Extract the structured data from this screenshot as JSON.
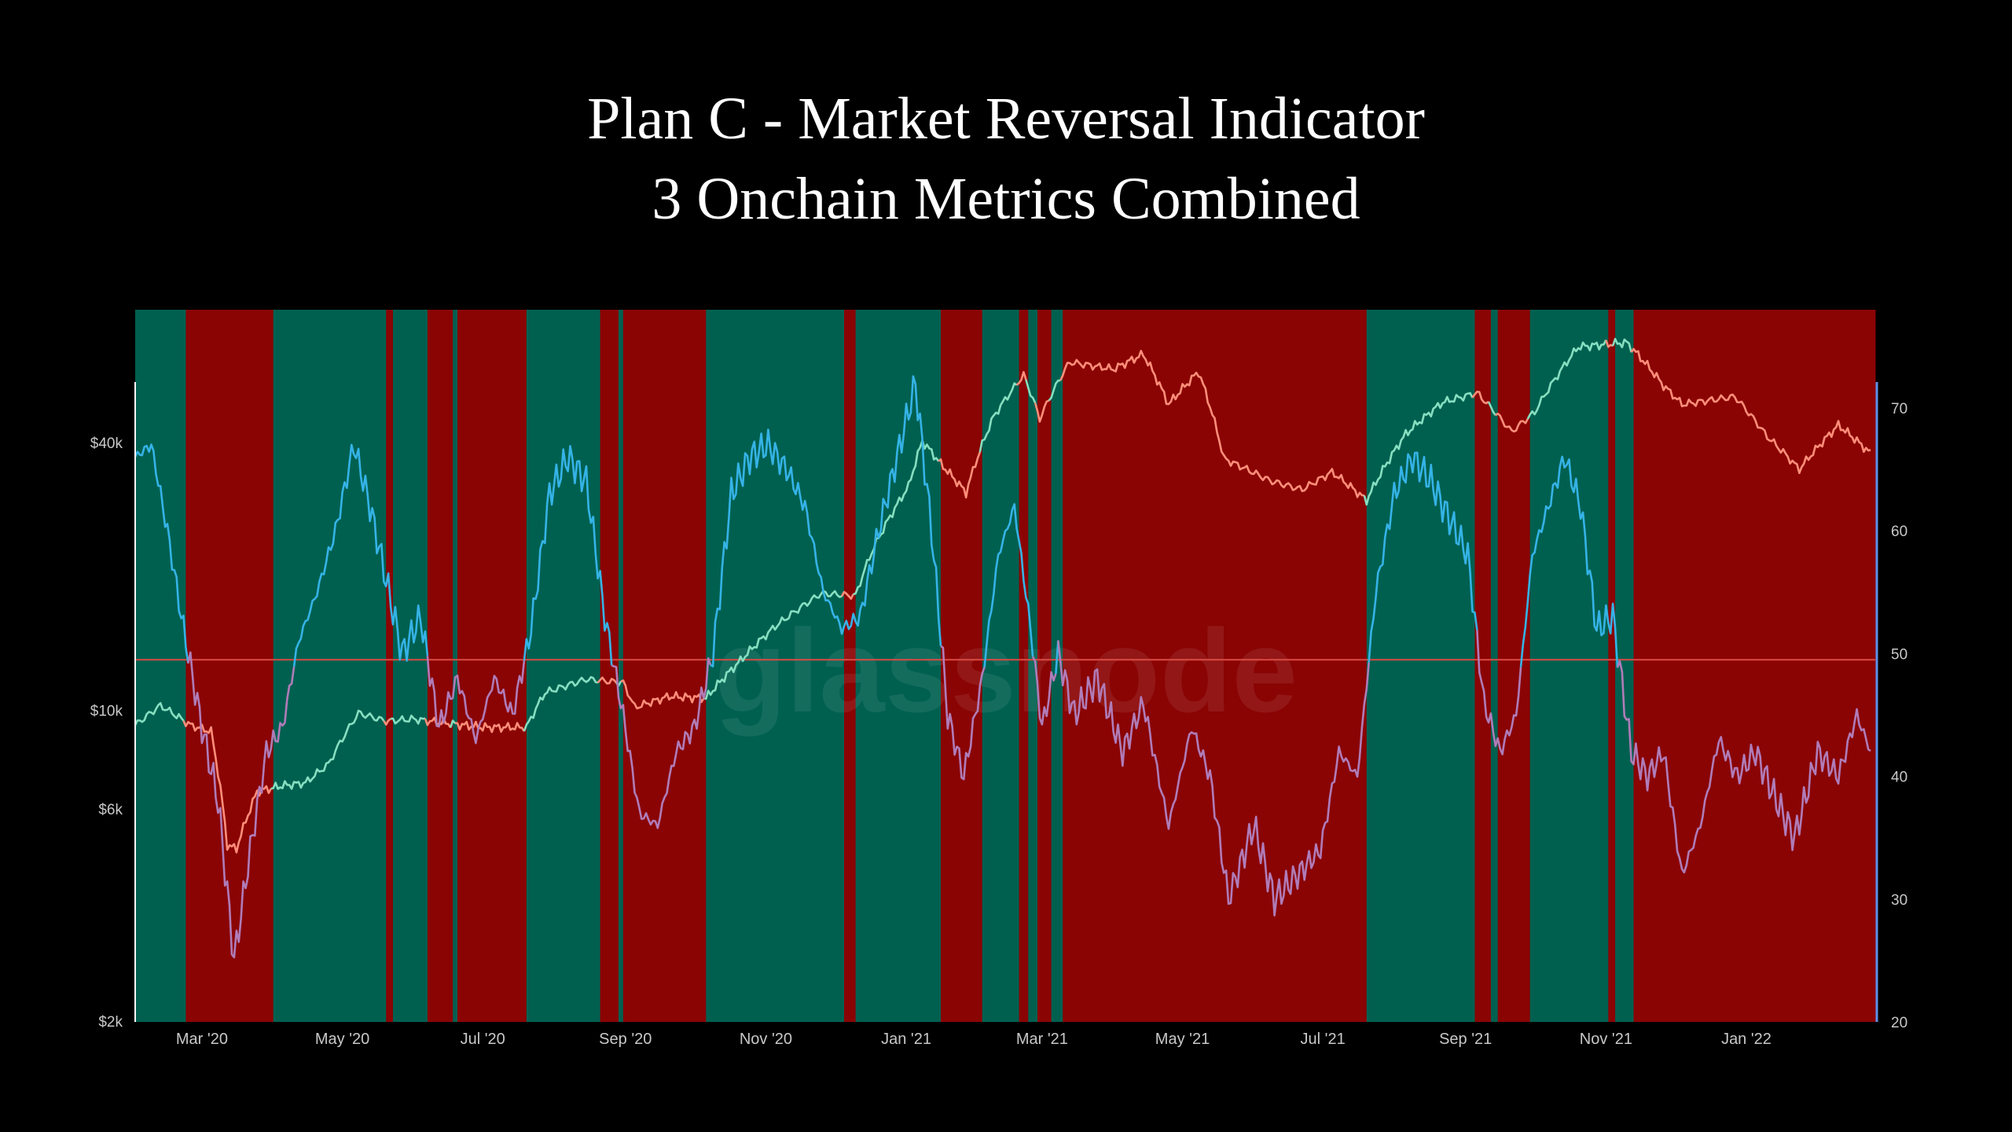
{
  "title": {
    "line1": "Plan C - Market Reversal Indicator",
    "line2": "3 Onchain Metrics Combined"
  },
  "watermark": "glassnode",
  "colors": {
    "background": "#000000",
    "bullish_band": "#006050",
    "bearish_band": "#8a0404",
    "price_up": "#86dfc0",
    "price_down": "#ff8e7a",
    "metric": "#35b3e6",
    "metric_low": "#b07cb8",
    "threshold": "#d94b44",
    "right_axis": "#5f8fe8"
  },
  "chart_data": {
    "type": "line",
    "x_domain": [
      "2020-02-01",
      "2022-02-26"
    ],
    "x_ticks": [
      {
        "date": "2020-03-01",
        "label": "Mar '20"
      },
      {
        "date": "2020-05-01",
        "label": "May '20"
      },
      {
        "date": "2020-07-01",
        "label": "Jul '20"
      },
      {
        "date": "2020-09-01",
        "label": "Sep '20"
      },
      {
        "date": "2020-11-01",
        "label": "Nov '20"
      },
      {
        "date": "2021-01-01",
        "label": "Jan '21"
      },
      {
        "date": "2021-03-01",
        "label": "Mar '21"
      },
      {
        "date": "2021-05-01",
        "label": "May '21"
      },
      {
        "date": "2021-07-01",
        "label": "Jul '21"
      },
      {
        "date": "2021-09-01",
        "label": "Sep '21"
      },
      {
        "date": "2021-11-01",
        "label": "Nov '21"
      },
      {
        "date": "2022-01-01",
        "label": "Jan '22"
      }
    ],
    "y_left": {
      "scale": "log",
      "range": [
        2000,
        80000
      ],
      "ticks": [
        {
          "value": 2000,
          "label": "$2k"
        },
        {
          "value": 6000,
          "label": "$6k"
        },
        {
          "value": 10000,
          "label": "$10k"
        },
        {
          "value": 40000,
          "label": "$40k"
        }
      ]
    },
    "y_right": {
      "scale": "linear",
      "range": [
        20,
        78
      ],
      "ticks": [
        20,
        30,
        40,
        50,
        60,
        70
      ]
    },
    "threshold": 49.5,
    "regimes": [
      {
        "start": "2020-02-01",
        "end": "2020-02-23",
        "state": "bullish"
      },
      {
        "start": "2020-02-23",
        "end": "2020-04-01",
        "state": "bearish"
      },
      {
        "start": "2020-04-01",
        "end": "2020-05-20",
        "state": "bullish"
      },
      {
        "start": "2020-05-20",
        "end": "2020-05-23",
        "state": "bearish"
      },
      {
        "start": "2020-05-23",
        "end": "2020-06-07",
        "state": "bullish"
      },
      {
        "start": "2020-06-07",
        "end": "2020-06-18",
        "state": "bearish"
      },
      {
        "start": "2020-06-18",
        "end": "2020-06-20",
        "state": "bullish"
      },
      {
        "start": "2020-06-20",
        "end": "2020-07-20",
        "state": "bearish"
      },
      {
        "start": "2020-07-20",
        "end": "2020-08-21",
        "state": "bullish"
      },
      {
        "start": "2020-08-21",
        "end": "2020-08-29",
        "state": "bearish"
      },
      {
        "start": "2020-08-29",
        "end": "2020-08-31",
        "state": "bullish"
      },
      {
        "start": "2020-08-31",
        "end": "2020-10-06",
        "state": "bearish"
      },
      {
        "start": "2020-10-06",
        "end": "2020-12-05",
        "state": "bullish"
      },
      {
        "start": "2020-12-05",
        "end": "2020-12-10",
        "state": "bearish"
      },
      {
        "start": "2020-12-10",
        "end": "2021-01-16",
        "state": "bullish"
      },
      {
        "start": "2021-01-16",
        "end": "2021-02-03",
        "state": "bearish"
      },
      {
        "start": "2021-02-03",
        "end": "2021-02-19",
        "state": "bullish"
      },
      {
        "start": "2021-02-19",
        "end": "2021-02-23",
        "state": "bearish"
      },
      {
        "start": "2021-02-23",
        "end": "2021-02-27",
        "state": "bullish"
      },
      {
        "start": "2021-02-27",
        "end": "2021-03-05",
        "state": "bearish"
      },
      {
        "start": "2021-03-05",
        "end": "2021-03-10",
        "state": "bullish"
      },
      {
        "start": "2021-03-10",
        "end": "2021-07-20",
        "state": "bearish"
      },
      {
        "start": "2021-07-20",
        "end": "2021-09-05",
        "state": "bullish"
      },
      {
        "start": "2021-09-05",
        "end": "2021-09-12",
        "state": "bearish"
      },
      {
        "start": "2021-09-12",
        "end": "2021-09-15",
        "state": "bullish"
      },
      {
        "start": "2021-09-15",
        "end": "2021-09-29",
        "state": "bearish"
      },
      {
        "start": "2021-09-29",
        "end": "2021-11-02",
        "state": "bullish"
      },
      {
        "start": "2021-11-02",
        "end": "2021-11-05",
        "state": "bearish"
      },
      {
        "start": "2021-11-05",
        "end": "2021-11-13",
        "state": "bullish"
      },
      {
        "start": "2021-11-13",
        "end": "2022-02-26",
        "state": "bearish"
      }
    ],
    "series": [
      {
        "name": "BTC Price (USD)",
        "axis": "left",
        "points": [
          [
            "2020-02-01",
            9300
          ],
          [
            "2020-02-12",
            10300
          ],
          [
            "2020-02-25",
            9300
          ],
          [
            "2020-03-05",
            9000
          ],
          [
            "2020-03-12",
            5000
          ],
          [
            "2020-03-16",
            4900
          ],
          [
            "2020-03-25",
            6600
          ],
          [
            "2020-04-05",
            6800
          ],
          [
            "2020-04-15",
            6900
          ],
          [
            "2020-04-25",
            7600
          ],
          [
            "2020-05-08",
            9900
          ],
          [
            "2020-05-20",
            9500
          ],
          [
            "2020-06-01",
            9600
          ],
          [
            "2020-06-15",
            9400
          ],
          [
            "2020-07-01",
            9200
          ],
          [
            "2020-07-20",
            9200
          ],
          [
            "2020-07-28",
            11000
          ],
          [
            "2020-08-15",
            11800
          ],
          [
            "2020-08-31",
            11600
          ],
          [
            "2020-09-05",
            10200
          ],
          [
            "2020-09-20",
            10800
          ],
          [
            "2020-10-06",
            10700
          ],
          [
            "2020-10-21",
            13000
          ],
          [
            "2020-11-05",
            15500
          ],
          [
            "2020-11-25",
            18400
          ],
          [
            "2020-12-10",
            18200
          ],
          [
            "2020-12-17",
            22800
          ],
          [
            "2021-01-02",
            32000
          ],
          [
            "2021-01-08",
            40500
          ],
          [
            "2021-01-16",
            36000
          ],
          [
            "2021-01-27",
            31000
          ],
          [
            "2021-02-08",
            46000
          ],
          [
            "2021-02-21",
            57000
          ],
          [
            "2021-02-28",
            45500
          ],
          [
            "2021-03-13",
            61000
          ],
          [
            "2021-04-01",
            58800
          ],
          [
            "2021-04-14",
            63500
          ],
          [
            "2021-04-25",
            49000
          ],
          [
            "2021-05-08",
            58000
          ],
          [
            "2021-05-19",
            37000
          ],
          [
            "2021-06-08",
            33000
          ],
          [
            "2021-06-22",
            31500
          ],
          [
            "2021-07-05",
            34500
          ],
          [
            "2021-07-20",
            29800
          ],
          [
            "2021-08-06",
            42000
          ],
          [
            "2021-08-22",
            49500
          ],
          [
            "2021-09-06",
            52000
          ],
          [
            "2021-09-21",
            42500
          ],
          [
            "2021-10-01",
            47000
          ],
          [
            "2021-10-20",
            66000
          ],
          [
            "2021-11-10",
            67500
          ],
          [
            "2021-11-26",
            54000
          ],
          [
            "2021-12-04",
            49000
          ],
          [
            "2021-12-27",
            51000
          ],
          [
            "2022-01-10",
            41500
          ],
          [
            "2022-01-24",
            35000
          ],
          [
            "2022-02-10",
            44000
          ],
          [
            "2022-02-24",
            38000
          ]
        ]
      },
      {
        "name": "Reversal Indicator",
        "axis": "right",
        "points": [
          [
            "2020-02-01",
            66
          ],
          [
            "2020-02-08",
            67
          ],
          [
            "2020-02-15",
            60
          ],
          [
            "2020-02-22",
            52
          ],
          [
            "2020-03-01",
            44
          ],
          [
            "2020-03-08",
            38
          ],
          [
            "2020-03-15",
            25
          ],
          [
            "2020-03-22",
            34
          ],
          [
            "2020-03-29",
            42
          ],
          [
            "2020-04-05",
            44
          ],
          [
            "2020-04-12",
            51
          ],
          [
            "2020-04-20",
            55
          ],
          [
            "2020-04-28",
            60
          ],
          [
            "2020-05-06",
            67
          ],
          [
            "2020-05-13",
            62
          ],
          [
            "2020-05-20",
            56
          ],
          [
            "2020-05-27",
            50
          ],
          [
            "2020-06-04",
            53
          ],
          [
            "2020-06-12",
            44
          ],
          [
            "2020-06-20",
            48
          ],
          [
            "2020-06-28",
            43
          ],
          [
            "2020-07-06",
            48
          ],
          [
            "2020-07-14",
            45
          ],
          [
            "2020-07-22",
            52
          ],
          [
            "2020-07-30",
            63
          ],
          [
            "2020-08-07",
            66
          ],
          [
            "2020-08-15",
            64
          ],
          [
            "2020-08-23",
            53
          ],
          [
            "2020-08-31",
            45
          ],
          [
            "2020-09-07",
            37
          ],
          [
            "2020-09-15",
            36
          ],
          [
            "2020-09-23",
            42
          ],
          [
            "2020-10-01",
            44
          ],
          [
            "2020-10-09",
            50
          ],
          [
            "2020-10-17",
            63
          ],
          [
            "2020-10-25",
            66
          ],
          [
            "2020-11-02",
            67
          ],
          [
            "2020-11-10",
            65
          ],
          [
            "2020-11-18",
            62
          ],
          [
            "2020-11-26",
            55
          ],
          [
            "2020-12-04",
            52
          ],
          [
            "2020-12-12",
            53
          ],
          [
            "2020-12-20",
            60
          ],
          [
            "2020-12-28",
            66
          ],
          [
            "2021-01-05",
            72
          ],
          [
            "2021-01-12",
            60
          ],
          [
            "2021-01-19",
            45
          ],
          [
            "2021-01-26",
            40
          ],
          [
            "2021-02-03",
            48
          ],
          [
            "2021-02-10",
            58
          ],
          [
            "2021-02-17",
            62
          ],
          [
            "2021-02-24",
            52
          ],
          [
            "2021-03-01",
            44
          ],
          [
            "2021-03-08",
            50
          ],
          [
            "2021-03-15",
            45
          ],
          [
            "2021-03-25",
            48
          ],
          [
            "2021-04-05",
            42
          ],
          [
            "2021-04-14",
            46
          ],
          [
            "2021-04-25",
            36
          ],
          [
            "2021-05-05",
            44
          ],
          [
            "2021-05-13",
            40
          ],
          [
            "2021-05-21",
            30
          ],
          [
            "2021-06-01",
            36
          ],
          [
            "2021-06-10",
            30
          ],
          [
            "2021-06-20",
            32
          ],
          [
            "2021-06-30",
            34
          ],
          [
            "2021-07-08",
            42
          ],
          [
            "2021-07-16",
            40
          ],
          [
            "2021-07-24",
            55
          ],
          [
            "2021-08-01",
            63
          ],
          [
            "2021-08-09",
            66
          ],
          [
            "2021-08-17",
            64
          ],
          [
            "2021-08-25",
            61
          ],
          [
            "2021-09-02",
            58
          ],
          [
            "2021-09-09",
            46
          ],
          [
            "2021-09-16",
            42
          ],
          [
            "2021-09-23",
            45
          ],
          [
            "2021-09-30",
            58
          ],
          [
            "2021-10-07",
            62
          ],
          [
            "2021-10-14",
            66
          ],
          [
            "2021-10-21",
            62
          ],
          [
            "2021-10-28",
            52
          ],
          [
            "2021-11-04",
            53
          ],
          [
            "2021-11-12",
            42
          ],
          [
            "2021-11-19",
            40
          ],
          [
            "2021-11-26",
            42
          ],
          [
            "2021-12-04",
            32
          ],
          [
            "2021-12-12",
            36
          ],
          [
            "2021-12-20",
            43
          ],
          [
            "2021-12-28",
            40
          ],
          [
            "2022-01-05",
            42
          ],
          [
            "2022-01-14",
            38
          ],
          [
            "2022-01-22",
            35
          ],
          [
            "2022-02-01",
            42
          ],
          [
            "2022-02-10",
            40
          ],
          [
            "2022-02-18",
            45
          ],
          [
            "2022-02-24",
            42
          ]
        ]
      }
    ]
  }
}
